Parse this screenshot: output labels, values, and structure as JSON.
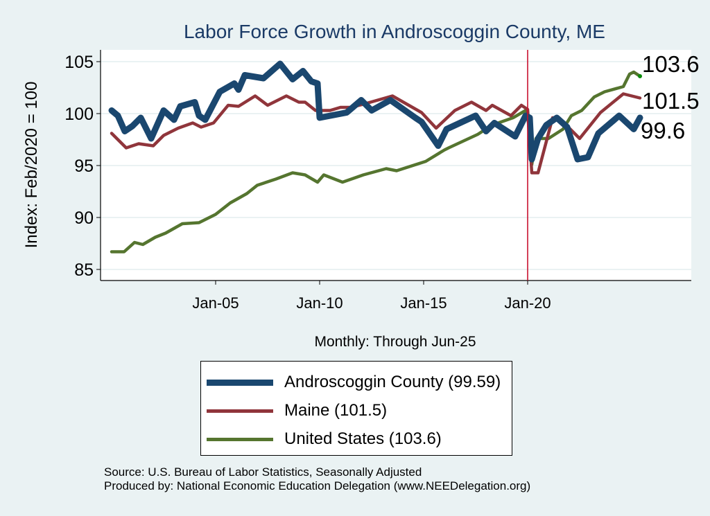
{
  "chart_data": {
    "type": "line",
    "title": "Labor Force Growth in Androscoggin  County, ME",
    "xlabel": "Monthly: Through Jun-25",
    "ylabel": "Index: Feb/2020 = 100",
    "xlim": [
      1999.5,
      2028.0
    ],
    "ylim": [
      84.2,
      106.1
    ],
    "yticks": [
      85,
      90,
      95,
      100,
      105
    ],
    "xticks": [
      {
        "value": 2005,
        "label": "Jan-05"
      },
      {
        "value": 2010,
        "label": "Jan-10"
      },
      {
        "value": 2015,
        "label": "Jan-15"
      },
      {
        "value": 2020,
        "label": "Jan-20"
      }
    ],
    "grid": true,
    "reference_line": {
      "x": 2020.0,
      "color": "#c8102e"
    },
    "legend_position": "bottom",
    "series": [
      {
        "name": "Androscoggin  County (99.59)",
        "color": "#1a476f",
        "end_label": "99.6",
        "x": [
          2000.0,
          2000.3,
          2000.63,
          2001.0,
          2001.4,
          2001.9,
          2002.5,
          2003.0,
          2003.3,
          2004.0,
          2004.2,
          2004.5,
          2005.2,
          2005.9,
          2006.1,
          2006.4,
          2007.3,
          2008.1,
          2008.7,
          2009.2,
          2009.6,
          2009.9,
          2010.0,
          2011.3,
          2012.0,
          2012.5,
          2013.4,
          2014.6,
          2014.9,
          2015.7,
          2016.1,
          2017.5,
          2018.0,
          2018.4,
          2019.4,
          2019.9,
          2020.1,
          2020.2,
          2020.5,
          2020.9,
          2021.4,
          2021.9,
          2022.4,
          2022.9,
          2023.4,
          2024.4,
          2025.1,
          2025.4
        ],
        "y": [
          100.3,
          99.8,
          98.3,
          98.8,
          99.6,
          97.6,
          100.3,
          99.4,
          100.7,
          101.1,
          99.8,
          99.4,
          102.1,
          102.9,
          102.3,
          103.7,
          103.4,
          104.8,
          103.3,
          104.1,
          103.1,
          102.9,
          99.6,
          100.1,
          101.3,
          100.3,
          101.3,
          99.6,
          99.2,
          96.9,
          98.5,
          99.8,
          98.3,
          99.1,
          97.8,
          99.8,
          99.6,
          95.6,
          97.6,
          98.9,
          99.6,
          98.7,
          95.6,
          95.8,
          98.1,
          99.8,
          98.5,
          99.6
        ]
      },
      {
        "name": "Maine (101.5)",
        "color": "#90353b",
        "end_label": "101.5",
        "x": [
          2000.0,
          2000.7,
          2001.3,
          2002.0,
          2002.5,
          2003.2,
          2003.9,
          2004.3,
          2004.9,
          2005.6,
          2006.1,
          2006.9,
          2007.5,
          2008.4,
          2009.0,
          2009.3,
          2009.8,
          2010.5,
          2011.0,
          2011.5,
          2012.1,
          2013.5,
          2014.9,
          2015.6,
          2016.5,
          2017.3,
          2018.0,
          2018.3,
          2019.2,
          2019.7,
          2020.0,
          2020.2,
          2020.5,
          2021.2,
          2021.5,
          2022.5,
          2023.5,
          2024.6,
          2025.4
        ],
        "y": [
          98.1,
          96.7,
          97.1,
          96.9,
          97.9,
          98.6,
          99.1,
          98.7,
          99.1,
          100.8,
          100.7,
          101.7,
          100.8,
          101.7,
          101.1,
          101.1,
          100.3,
          100.3,
          100.6,
          100.6,
          100.9,
          101.7,
          100.1,
          98.6,
          100.3,
          101.1,
          100.3,
          100.8,
          99.8,
          100.8,
          100.4,
          94.3,
          94.3,
          99.6,
          99.6,
          97.6,
          100.1,
          101.9,
          101.5
        ]
      },
      {
        "name": "United States (103.6)",
        "color": "#55752f",
        "end_label": "103.6",
        "x": [
          2000.0,
          2000.6,
          2001.1,
          2001.5,
          2002.1,
          2002.6,
          2003.4,
          2004.2,
          2005.0,
          2005.7,
          2006.5,
          2007.0,
          2007.9,
          2008.7,
          2009.3,
          2009.9,
          2010.2,
          2011.1,
          2012.1,
          2013.2,
          2013.7,
          2015.1,
          2016.0,
          2016.2,
          2017.6,
          2018.3,
          2019.3,
          2019.9,
          2020.0,
          2020.2,
          2020.4,
          2021.0,
          2021.7,
          2022.1,
          2022.6,
          2023.2,
          2023.7,
          2024.6,
          2024.9,
          2025.1,
          2025.4
        ],
        "y": [
          86.7,
          86.7,
          87.6,
          87.4,
          88.1,
          88.5,
          89.4,
          89.5,
          90.3,
          91.4,
          92.3,
          93.1,
          93.7,
          94.3,
          94.1,
          93.4,
          94.1,
          93.4,
          94.1,
          94.7,
          94.5,
          95.4,
          96.5,
          96.7,
          98.0,
          98.9,
          99.6,
          100.3,
          100.1,
          95.1,
          97.6,
          97.6,
          98.5,
          99.8,
          100.3,
          101.6,
          102.1,
          102.6,
          103.8,
          104.0,
          103.6
        ]
      }
    ]
  },
  "notes": {
    "source": "Source: U.S. Bureau of Labor Statistics, Seasonally Adjusted",
    "produced_by": "Produced by: National Economic Education Delegation (www.NEEDelegation.org)"
  }
}
